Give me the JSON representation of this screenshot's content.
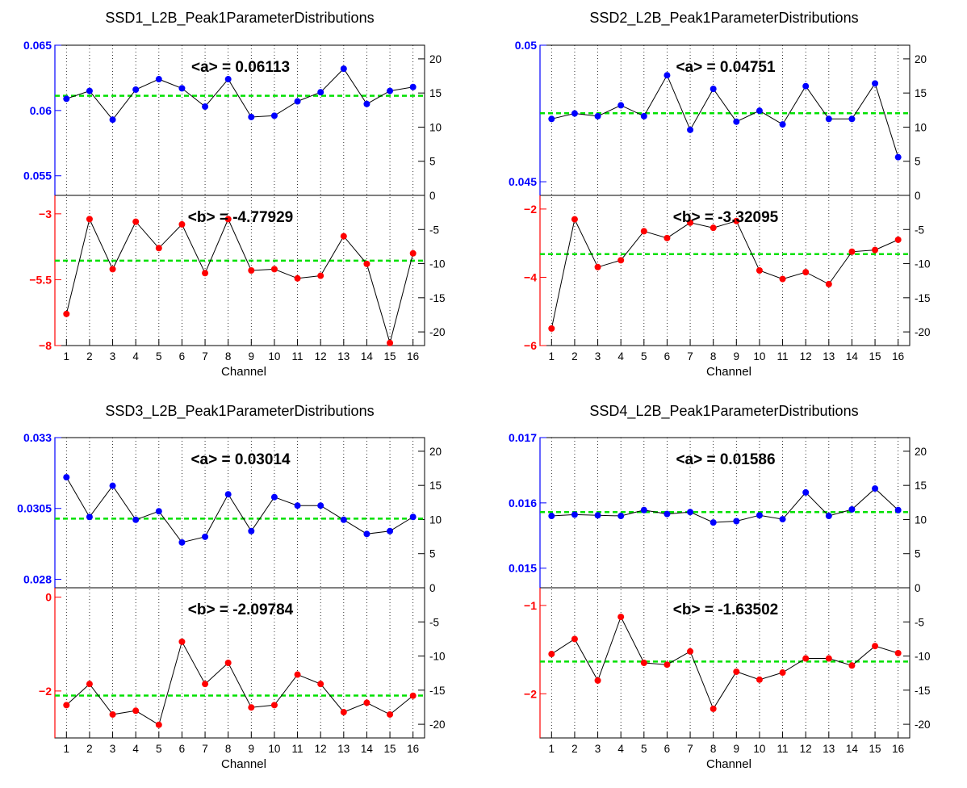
{
  "colors": {
    "a_series": "#0000ff",
    "b_series": "#ff0000",
    "mean_line": "#00e000",
    "grid": "#000000"
  },
  "chart_data": [
    {
      "type": "scatter",
      "title": "SSD1_L2B_Peak1ParameterDistributions",
      "xlabel": "Channel",
      "x": [
        1,
        2,
        3,
        4,
        5,
        6,
        7,
        8,
        9,
        10,
        11,
        12,
        13,
        14,
        15,
        16
      ],
      "grid": "vertical dotted",
      "right_axis": {
        "range": [
          0,
          22
        ],
        "ticks": [
          0,
          5,
          10,
          15,
          20
        ]
      },
      "top": {
        "series_label": "<a> = 0.06113",
        "mean": 0.06113,
        "ylim": [
          0.0535,
          0.065
        ],
        "ticks": [
          0.055,
          0.06,
          0.065
        ],
        "tick_labels": [
          "0.055",
          "0.06",
          "0.065"
        ],
        "values": [
          0.0609,
          0.0615,
          0.0593,
          0.0616,
          0.0624,
          0.0617,
          0.0603,
          0.0624,
          0.0595,
          0.0596,
          0.0607,
          0.0614,
          0.0632,
          0.0605,
          0.0615,
          0.0618
        ]
      },
      "bottom": {
        "series_label": "<b> = -4.77929",
        "mean": -4.77929,
        "ylim": [
          -8,
          -2.3
        ],
        "ticks": [
          -8,
          -5.5,
          -3
        ],
        "tick_labels": [
          "−8",
          "−5.5",
          "−3"
        ],
        "right_ticks": [
          -5,
          -10,
          -15,
          -20
        ],
        "values": [
          -6.8,
          -3.2,
          -5.1,
          -3.3,
          -4.3,
          -3.4,
          -5.25,
          -3.2,
          -5.15,
          -5.1,
          -5.45,
          -5.35,
          -3.85,
          -4.9,
          -7.9,
          -4.5
        ]
      }
    },
    {
      "type": "scatter",
      "title": "SSD2_L2B_Peak1ParameterDistributions",
      "xlabel": "Channel",
      "x": [
        1,
        2,
        3,
        4,
        5,
        6,
        7,
        8,
        9,
        10,
        11,
        12,
        13,
        14,
        15,
        16
      ],
      "grid": "vertical dotted",
      "right_axis": {
        "range": [
          0,
          22
        ],
        "ticks": [
          0,
          5,
          10,
          15,
          20
        ]
      },
      "top": {
        "series_label": "<a> = 0.04751",
        "mean": 0.04751,
        "ylim": [
          0.0445,
          0.05
        ],
        "ticks": [
          0.045,
          0.05
        ],
        "tick_labels": [
          "0.045",
          "0.05"
        ],
        "values": [
          0.0473,
          0.0475,
          0.0474,
          0.0478,
          0.0474,
          0.0489,
          0.0469,
          0.0484,
          0.0472,
          0.0476,
          0.0471,
          0.0485,
          0.0473,
          0.0473,
          0.0486,
          0.0459
        ]
      },
      "bottom": {
        "series_label": "<b> = -3.32095",
        "mean": -3.32095,
        "ylim": [
          -6,
          -1.6
        ],
        "ticks": [
          -6,
          -4,
          -2
        ],
        "tick_labels": [
          "−6",
          "−4",
          "−2"
        ],
        "right_ticks": [
          -5,
          -10,
          -15,
          -20
        ],
        "values": [
          -5.5,
          -2.3,
          -3.7,
          -3.5,
          -2.65,
          -2.85,
          -2.4,
          -2.55,
          -2.35,
          -3.8,
          -4.05,
          -3.85,
          -4.2,
          -3.25,
          -3.2,
          -2.9
        ]
      }
    },
    {
      "type": "scatter",
      "title": "SSD3_L2B_Peak1ParameterDistributions",
      "xlabel": "Channel",
      "x": [
        1,
        2,
        3,
        4,
        5,
        6,
        7,
        8,
        9,
        10,
        11,
        12,
        13,
        14,
        15,
        16
      ],
      "grid": "vertical dotted",
      "right_axis": {
        "range": [
          0,
          22
        ],
        "ticks": [
          0,
          5,
          10,
          15,
          20
        ]
      },
      "top": {
        "series_label": "<a> = 0.03014",
        "mean": 0.03014,
        "ylim": [
          0.0277,
          0.033
        ],
        "ticks": [
          0.028,
          0.0305,
          0.033
        ],
        "tick_labels": [
          "0.028",
          "0.0305",
          "0.033"
        ],
        "values": [
          0.0316,
          0.0302,
          0.0313,
          0.0301,
          0.0304,
          0.0293,
          0.0295,
          0.031,
          0.0297,
          0.0309,
          0.0306,
          0.0306,
          0.0301,
          0.0296,
          0.0297,
          0.0302
        ]
      },
      "bottom": {
        "series_label": "<b> = -2.09784",
        "mean": -2.09784,
        "ylim": [
          -3,
          0.2
        ],
        "ticks": [
          -2,
          0
        ],
        "tick_labels": [
          "−2",
          "0"
        ],
        "right_ticks": [
          -5,
          -10,
          -15,
          -20
        ],
        "values": [
          -2.3,
          -1.85,
          -2.5,
          -2.42,
          -2.72,
          -0.95,
          -1.85,
          -1.4,
          -2.35,
          -2.3,
          -1.65,
          -1.85,
          -2.45,
          -2.25,
          -2.5,
          -2.1
        ]
      }
    },
    {
      "type": "scatter",
      "title": "SSD4_L2B_Peak1ParameterDistributions",
      "xlabel": "Channel",
      "x": [
        1,
        2,
        3,
        4,
        5,
        6,
        7,
        8,
        9,
        10,
        11,
        12,
        13,
        14,
        15,
        16
      ],
      "grid": "vertical dotted",
      "right_axis": {
        "range": [
          0,
          22
        ],
        "ticks": [
          0,
          5,
          10,
          15,
          20
        ]
      },
      "top": {
        "series_label": "<a> = 0.01586",
        "mean": 0.01586,
        "ylim": [
          0.0147,
          0.017
        ],
        "ticks": [
          0.015,
          0.016,
          0.017
        ],
        "tick_labels": [
          "0.015",
          "0.016",
          "0.017"
        ],
        "values": [
          0.0158,
          0.01582,
          0.01581,
          0.0158,
          0.01589,
          0.01583,
          0.01586,
          0.0157,
          0.01572,
          0.01581,
          0.01575,
          0.01616,
          0.0158,
          0.0159,
          0.01622,
          0.01589
        ]
      },
      "bottom": {
        "series_label": "<b> = -1.63502",
        "mean": -1.63502,
        "ylim": [
          -2.5,
          -0.8
        ],
        "ticks": [
          -2,
          -1
        ],
        "tick_labels": [
          "−2",
          "−1"
        ],
        "right_ticks": [
          -5,
          -10,
          -15,
          -20
        ],
        "values": [
          -1.55,
          -1.38,
          -1.85,
          -1.13,
          -1.65,
          -1.67,
          -1.52,
          -2.17,
          -1.75,
          -1.84,
          -1.76,
          -1.6,
          -1.6,
          -1.68,
          -1.46,
          -1.54
        ]
      }
    }
  ]
}
